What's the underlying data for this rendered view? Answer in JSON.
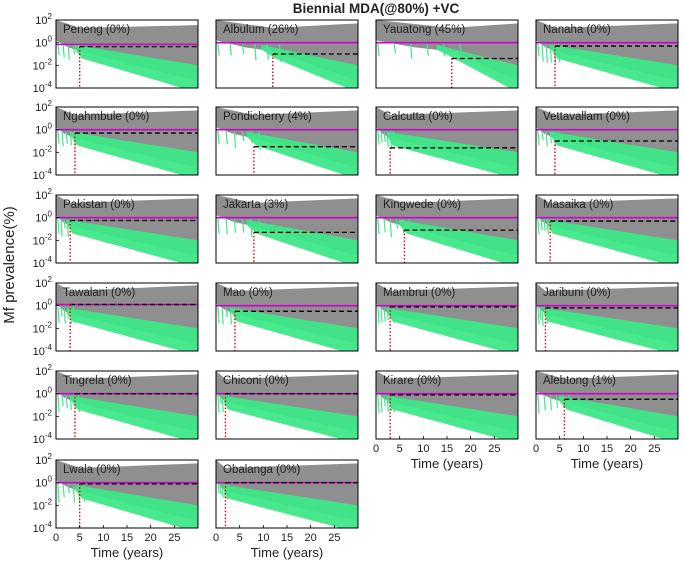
{
  "chart_data": {
    "type": "line",
    "title": "Biennial MDA(@80%) +VC",
    "ylabel": "Mf prevalence(%)",
    "xlabel": "Time (years)",
    "xlim": [
      0,
      30
    ],
    "ylim_log10": [
      -4,
      2
    ],
    "xticks": [
      0,
      5,
      10,
      15,
      20,
      25
    ],
    "yticks": [
      {
        "base": "10",
        "exp": "2",
        "log": 2
      },
      {
        "base": "10",
        "exp": "0",
        "log": 0
      },
      {
        "base": "10",
        "exp": "-2",
        "log": -2
      },
      {
        "base": "10",
        "exp": "-4",
        "log": -4
      }
    ],
    "series_colors": {
      "non_eliminated_runs": "#8f8f8f",
      "eliminated_runs": "#3ee888",
      "mf_threshold_line": "#d000d0",
      "breakpoint_line": "#000000",
      "elimination_time_marker": "#e00000"
    },
    "panels": [
      {
        "site": "Peneng",
        "pct": "(0%)",
        "threshold_log": -0.15,
        "breakpoint_log": -0.35,
        "elim_year": 5
      },
      {
        "site": "Albulum",
        "pct": "(26%)",
        "threshold_log": 0.0,
        "breakpoint_log": -1.0,
        "elim_year": 12
      },
      {
        "site": "Yauatong",
        "pct": "(45%)",
        "threshold_log": 0.0,
        "breakpoint_log": -1.4,
        "elim_year": 16
      },
      {
        "site": "Nanaha",
        "pct": "(0%)",
        "threshold_log": 0.0,
        "breakpoint_log": -0.3,
        "elim_year": 4
      },
      {
        "site": "Ngahmbule",
        "pct": "(0%)",
        "threshold_log": 0.0,
        "breakpoint_log": -0.3,
        "elim_year": 4
      },
      {
        "site": "Pondicherry",
        "pct": "(4%)",
        "threshold_log": 0.0,
        "breakpoint_log": -1.5,
        "elim_year": 8
      },
      {
        "site": "Calcutta",
        "pct": "(0%)",
        "threshold_log": 0.0,
        "breakpoint_log": -1.6,
        "elim_year": 3
      },
      {
        "site": "Vettavallam",
        "pct": "(0%)",
        "threshold_log": 0.0,
        "breakpoint_log": -1.0,
        "elim_year": 4
      },
      {
        "site": "Pakistan",
        "pct": "(0%)",
        "threshold_log": 0.0,
        "breakpoint_log": -0.25,
        "elim_year": 3
      },
      {
        "site": "Jakarta",
        "pct": "(3%)",
        "threshold_log": 0.0,
        "breakpoint_log": -1.3,
        "elim_year": 8
      },
      {
        "site": "Kingwede",
        "pct": "(0%)",
        "threshold_log": 0.0,
        "breakpoint_log": -1.1,
        "elim_year": 6
      },
      {
        "site": "Masaika",
        "pct": "(0%)",
        "threshold_log": 0.0,
        "breakpoint_log": -0.3,
        "elim_year": 3
      },
      {
        "site": "Tawalani",
        "pct": "(0%)",
        "threshold_log": 0.1,
        "breakpoint_log": 0.1,
        "elim_year": 3
      },
      {
        "site": "Mao",
        "pct": "(0%)",
        "threshold_log": 0.0,
        "breakpoint_log": -0.5,
        "elim_year": 4
      },
      {
        "site": "Mambrui",
        "pct": "(0%)",
        "threshold_log": 0.0,
        "breakpoint_log": -0.1,
        "elim_year": 3
      },
      {
        "site": "Jaribuni",
        "pct": "(0%)",
        "threshold_log": 0.0,
        "breakpoint_log": -0.2,
        "elim_year": 2
      },
      {
        "site": "Tingrela",
        "pct": "(0%)",
        "threshold_log": 0.0,
        "breakpoint_log": 0.0,
        "elim_year": 4
      },
      {
        "site": "Chiconi",
        "pct": "(0%)",
        "threshold_log": 0.0,
        "breakpoint_log": 0.0,
        "elim_year": 2
      },
      {
        "site": "Kirare",
        "pct": "(0%)",
        "threshold_log": 0.0,
        "breakpoint_log": -0.1,
        "elim_year": 3
      },
      {
        "site": "Alebtong",
        "pct": "(1%)",
        "threshold_log": 0.0,
        "breakpoint_log": -0.5,
        "elim_year": 6
      },
      {
        "site": "Lwala",
        "pct": "(0%)",
        "threshold_log": 0.0,
        "breakpoint_log": -0.1,
        "elim_year": 5
      },
      {
        "site": "Obalanga",
        "pct": "(0%)",
        "threshold_log": 0.0,
        "breakpoint_log": 0.0,
        "elim_year": 2
      }
    ]
  }
}
